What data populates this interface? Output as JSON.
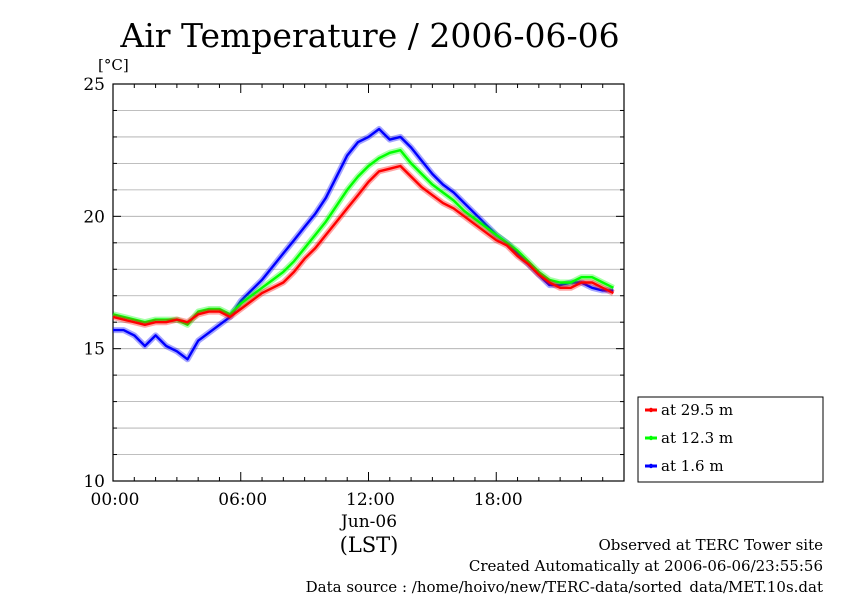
{
  "chart_data": {
    "type": "line",
    "title": "Air Temperature / 2006-06-06",
    "ylabel": "[°C]",
    "xlabel": "(LST)",
    "x_date_label": "Jun-06",
    "ylim": [
      10,
      25
    ],
    "xlim_hours": [
      0,
      23.5
    ],
    "y_ticks": [
      "10",
      "15",
      "20",
      "25"
    ],
    "y_tick_values": [
      10,
      15,
      20,
      25
    ],
    "x_ticks": [
      "00:00",
      "06:00",
      "12:00",
      "18:00"
    ],
    "x_tick_values": [
      0,
      6,
      12,
      18
    ],
    "grid": true,
    "legend_position": "right-bottom",
    "series": [
      {
        "name": "at 29.5 m",
        "color": "#ff0000",
        "x": [
          0,
          0.5,
          1,
          1.5,
          2,
          2.5,
          3,
          3.5,
          4,
          4.5,
          5,
          5.5,
          6,
          6.5,
          7,
          7.5,
          8,
          8.5,
          9,
          9.5,
          10,
          10.5,
          11,
          11.5,
          12,
          12.5,
          13,
          13.5,
          14,
          14.5,
          15,
          15.5,
          16,
          16.5,
          17,
          17.5,
          18,
          18.5,
          19,
          19.5,
          20,
          20.5,
          21,
          21.5,
          22,
          22.5,
          23,
          23.5
        ],
        "values": [
          16.2,
          16.1,
          16.0,
          15.9,
          16.0,
          16.0,
          16.1,
          16.0,
          16.3,
          16.4,
          16.4,
          16.2,
          16.5,
          16.8,
          17.1,
          17.3,
          17.5,
          17.9,
          18.4,
          18.8,
          19.3,
          19.8,
          20.3,
          20.8,
          21.3,
          21.7,
          21.8,
          21.9,
          21.5,
          21.1,
          20.8,
          20.5,
          20.3,
          20.0,
          19.7,
          19.4,
          19.1,
          18.9,
          18.5,
          18.2,
          17.8,
          17.5,
          17.3,
          17.3,
          17.5,
          17.5,
          17.3,
          17.1
        ]
      },
      {
        "name": "at 12.3 m",
        "color": "#00ff00",
        "x": [
          0,
          0.5,
          1,
          1.5,
          2,
          2.5,
          3,
          3.5,
          4,
          4.5,
          5,
          5.5,
          6,
          6.5,
          7,
          7.5,
          8,
          8.5,
          9,
          9.5,
          10,
          10.5,
          11,
          11.5,
          12,
          12.5,
          13,
          13.5,
          14,
          14.5,
          15,
          15.5,
          16,
          16.5,
          17,
          17.5,
          18,
          18.5,
          19,
          19.5,
          20,
          20.5,
          21,
          21.5,
          22,
          22.5,
          23,
          23.5
        ],
        "values": [
          16.3,
          16.2,
          16.1,
          16.0,
          16.1,
          16.1,
          16.1,
          15.9,
          16.4,
          16.5,
          16.5,
          16.3,
          16.7,
          17.0,
          17.3,
          17.6,
          17.9,
          18.3,
          18.8,
          19.3,
          19.8,
          20.4,
          21.0,
          21.5,
          21.9,
          22.2,
          22.4,
          22.5,
          22.0,
          21.6,
          21.2,
          20.9,
          20.6,
          20.2,
          19.9,
          19.6,
          19.3,
          19.0,
          18.7,
          18.3,
          17.9,
          17.6,
          17.5,
          17.5,
          17.7,
          17.7,
          17.5,
          17.3
        ]
      },
      {
        "name": "at 1.6 m",
        "color": "#0000ff",
        "x": [
          0,
          0.5,
          1,
          1.5,
          2,
          2.5,
          3,
          3.5,
          4,
          4.5,
          5,
          5.5,
          6,
          6.5,
          7,
          7.5,
          8,
          8.5,
          9,
          9.5,
          10,
          10.5,
          11,
          11.5,
          12,
          12.5,
          13,
          13.5,
          14,
          14.5,
          15,
          15.5,
          16,
          16.5,
          17,
          17.5,
          18,
          18.5,
          19,
          19.5,
          20,
          20.5,
          21,
          21.5,
          22,
          22.5,
          23,
          23.5
        ],
        "values": [
          15.7,
          15.7,
          15.5,
          15.1,
          15.5,
          15.1,
          14.9,
          14.6,
          15.3,
          15.6,
          15.9,
          16.2,
          16.8,
          17.2,
          17.6,
          18.1,
          18.6,
          19.1,
          19.6,
          20.1,
          20.7,
          21.5,
          22.3,
          22.8,
          23.0,
          23.3,
          22.9,
          23.0,
          22.6,
          22.1,
          21.6,
          21.2,
          20.9,
          20.5,
          20.1,
          19.7,
          19.3,
          19.0,
          18.6,
          18.2,
          17.8,
          17.4,
          17.4,
          17.5,
          17.5,
          17.3,
          17.2,
          17.2
        ]
      }
    ]
  },
  "footer": {
    "observed": "Observed at TERC Tower site",
    "created": "Created Automatically at 2006-06-06/23:55:56",
    "source": "Data source : /home/hoivo/new/TERC-data/sorted_data/MET.10s.dat"
  }
}
